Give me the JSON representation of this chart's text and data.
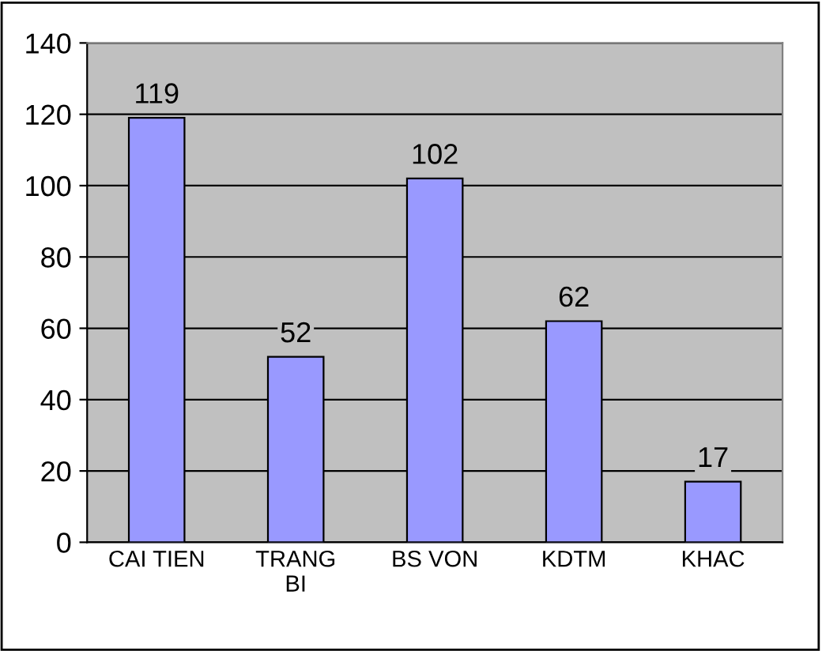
{
  "chart_data": {
    "type": "bar",
    "categories": [
      "CAI TIEN",
      "TRANG\nBI",
      "BS VON",
      "KDTM",
      "KHAC"
    ],
    "values": [
      119,
      52,
      102,
      62,
      17
    ],
    "color": "#9999ff",
    "data_labels": true,
    "ylim": [
      0,
      140
    ],
    "yticks": [
      0,
      20,
      40,
      60,
      80,
      100,
      120,
      140
    ],
    "grid": "y"
  }
}
